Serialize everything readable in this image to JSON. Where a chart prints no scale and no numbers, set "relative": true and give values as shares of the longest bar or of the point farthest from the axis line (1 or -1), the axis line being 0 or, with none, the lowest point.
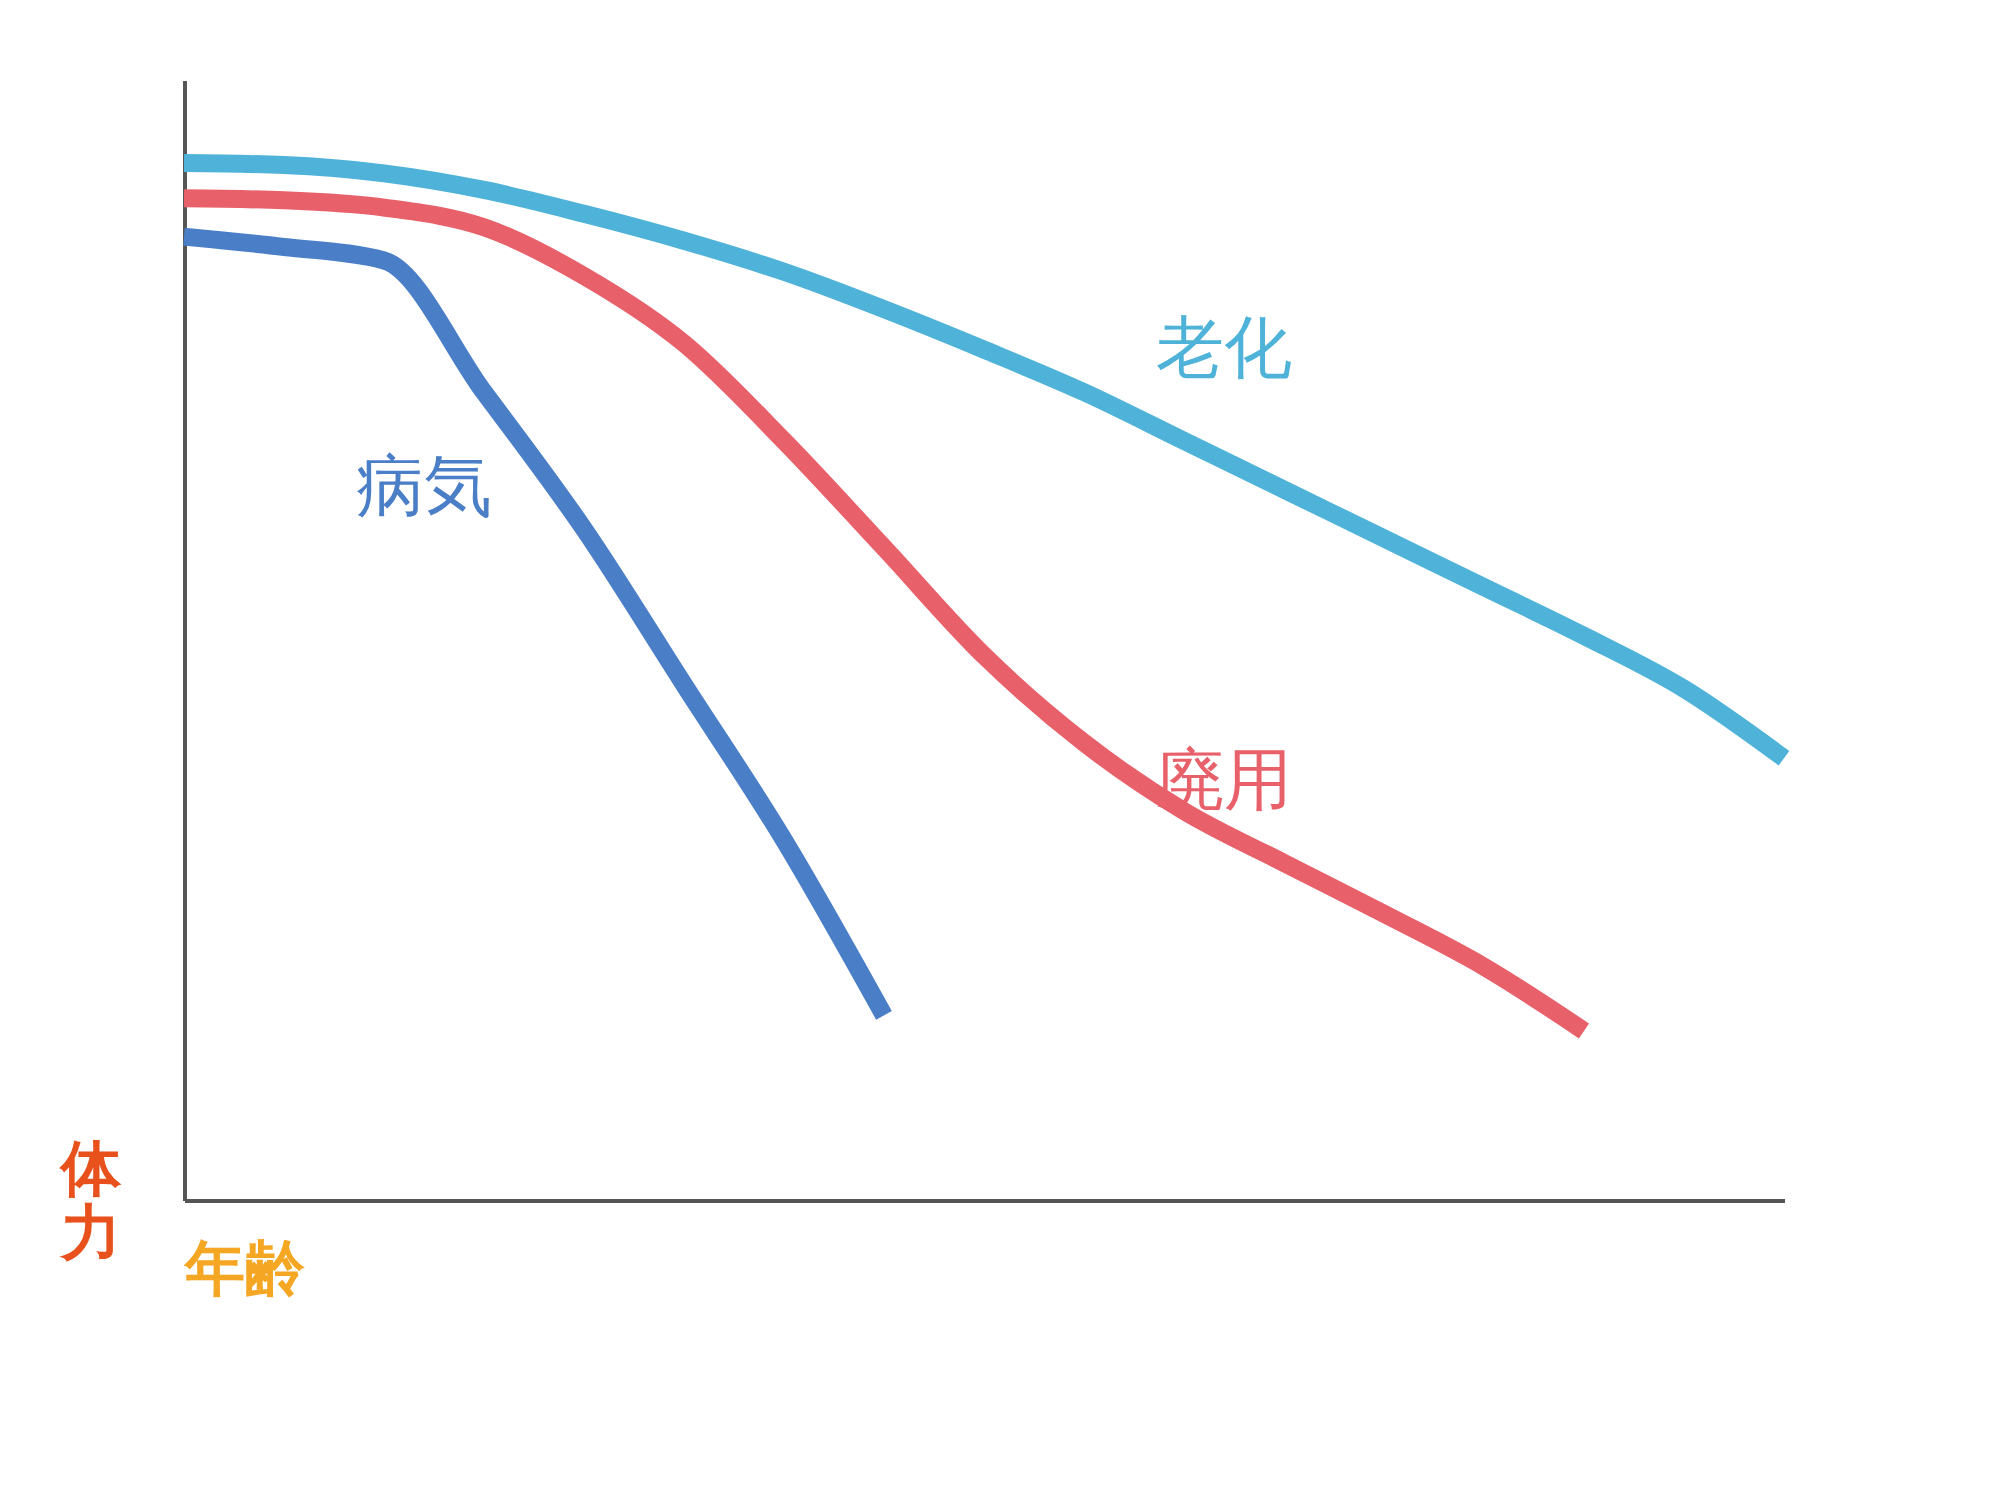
{
  "chart_data": {
    "type": "line",
    "relative": true,
    "xlabel": "年齢",
    "ylabel": "体力",
    "legend": false,
    "grid": false,
    "categories": [
      null,
      null,
      null,
      null,
      null,
      null,
      null,
      null,
      null,
      null,
      null,
      null,
      null,
      null,
      null,
      null,
      null
    ],
    "series": [
      {
        "name": "老化",
        "color": "#4fb3d9",
        "values": [
          1.0,
          0.998,
          0.99,
          0.974,
          0.951,
          0.925,
          0.895,
          0.859,
          0.82,
          0.779,
          0.732,
          0.685,
          0.638,
          0.591,
          0.544,
          0.493,
          0.426
        ]
      },
      {
        "name": "廃用",
        "color": "#e8606a",
        "values": [
          0.966,
          0.964,
          0.957,
          0.938,
          0.891,
          0.826,
          0.732,
          0.629,
          0.525,
          0.441,
          0.375,
          0.325,
          0.276,
          0.225,
          0.163,
          null,
          null
        ]
      },
      {
        "name": "病気",
        "color": "#4a7fc8",
        "values": [
          0.929,
          0.919,
          0.906,
          0.779,
          0.647,
          0.497,
          0.347,
          0.178,
          null,
          null,
          null,
          null,
          null,
          null,
          null,
          null,
          null
        ]
      }
    ]
  }
}
